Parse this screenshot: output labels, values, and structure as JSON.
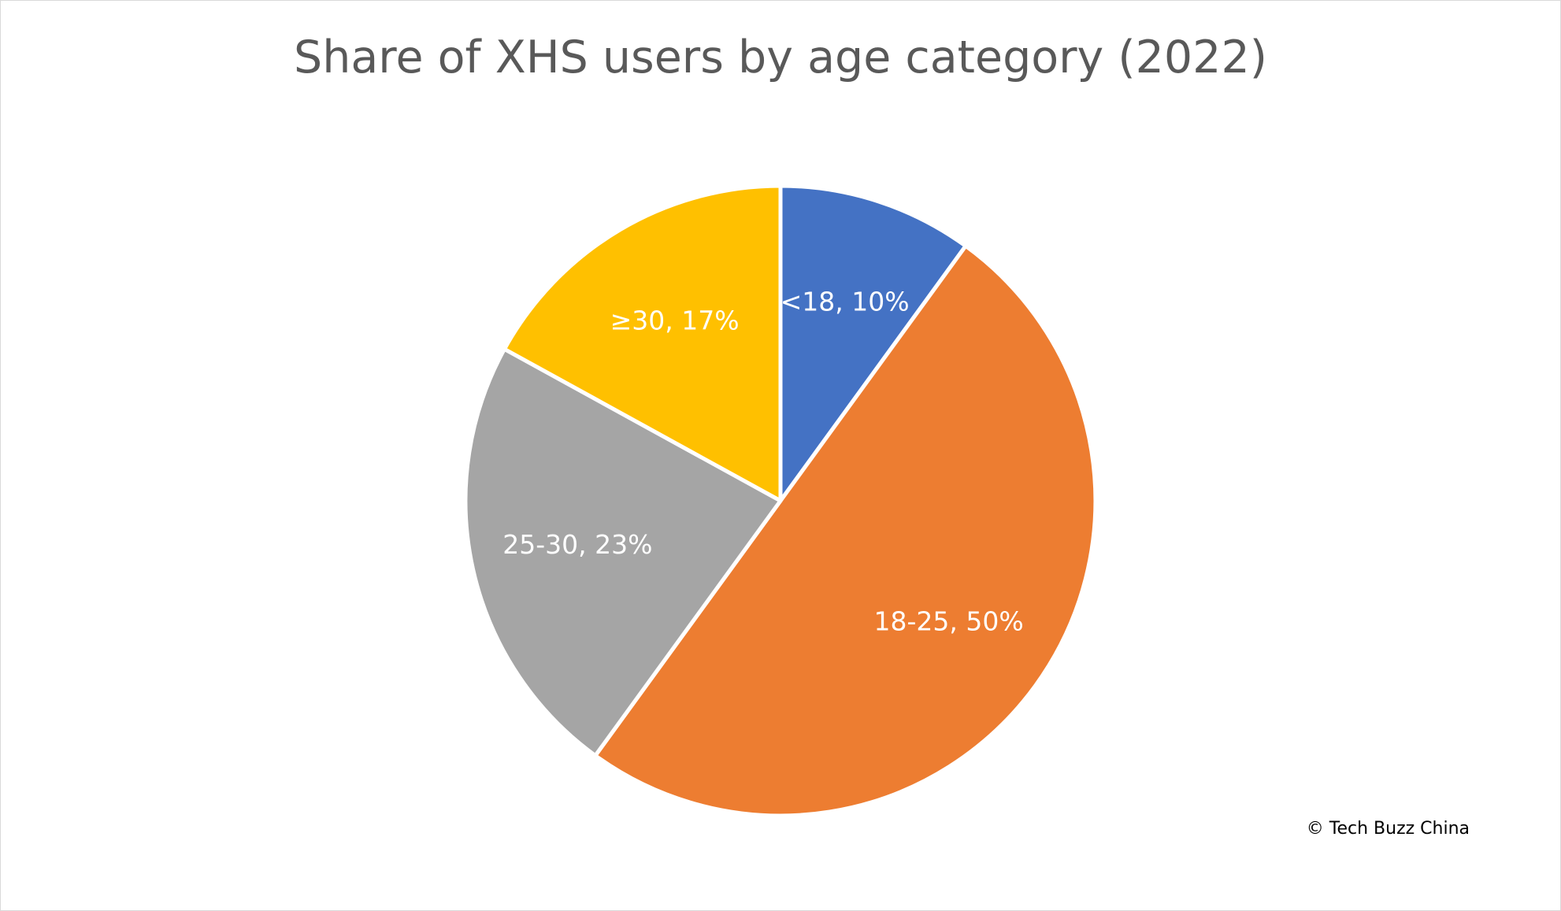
{
  "chart_data": {
    "type": "pie",
    "title": "Share of XHS users by age category (2022)",
    "slices": [
      {
        "label": "<18",
        "value": 10,
        "display": "<18, 10%",
        "color": "#4472C4"
      },
      {
        "label": "18-25",
        "value": 50,
        "display": "18-25, 50%",
        "color": "#ED7D31"
      },
      {
        "label": "25-30",
        "value": 23,
        "display": "25-30, 23%",
        "color": "#A5A5A5"
      },
      {
        "label": "≥30",
        "value": 17,
        "display": "≥30, 17%",
        "color": "#FFC000"
      }
    ],
    "legend": "none",
    "data_labels": "inside"
  },
  "credit": "© Tech Buzz China"
}
